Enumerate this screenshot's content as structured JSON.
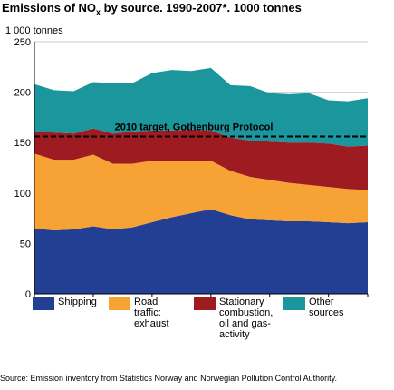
{
  "title_main": "Emissions of NO",
  "title_sub": "x",
  "title_rest": " by source. 1990-2007*. 1000 tonnes",
  "source": "Source: Emission inventory from Statistics Norway and Norwegian Pollution Control Authority.",
  "chart_data": {
    "type": "area",
    "stacked": true,
    "title": "Emissions of NOx by source. 1990-2007*. 1000 tonnes",
    "ylabel": "1 000 tonnes",
    "ylim": [
      0,
      250
    ],
    "yticks": [
      0,
      50,
      100,
      150,
      200,
      250
    ],
    "x": [
      1990,
      1991,
      1992,
      1993,
      1994,
      1995,
      1996,
      1997,
      1998,
      1999,
      2000,
      2001,
      2002,
      2003,
      2004,
      2005,
      2006,
      2007
    ],
    "xtick_labels": [
      "1990",
      "1993",
      "1996",
      "1999",
      "2002",
      "2005",
      "2007*"
    ],
    "xtick_values": [
      1990,
      1993,
      1996,
      1999,
      2002,
      2005,
      2007
    ],
    "grid": "horizontal",
    "legend_position": "bottom",
    "series": [
      {
        "name": "Shipping",
        "color": "#233f94",
        "values": [
          65,
          63,
          64,
          67,
          64,
          66,
          71,
          76,
          80,
          84,
          78,
          74,
          73,
          72,
          72,
          71,
          70,
          71
        ]
      },
      {
        "name": "Road traffic: exhaust",
        "color": "#f7a234",
        "values": [
          74,
          70,
          69,
          71,
          65,
          63,
          61,
          56,
          52,
          48,
          44,
          42,
          40,
          38,
          36,
          35,
          34,
          32
        ]
      },
      {
        "name": "Stationary combustion, oil and gas-activity",
        "color": "#9e1b21",
        "values": [
          22,
          27,
          26,
          26,
          30,
          32,
          30,
          30,
          31,
          30,
          33,
          36,
          38,
          40,
          42,
          43,
          42,
          44
        ]
      },
      {
        "name": "Other sources",
        "color": "#1b969c",
        "values": [
          47,
          42,
          42,
          46,
          50,
          48,
          57,
          60,
          58,
          62,
          52,
          54,
          48,
          48,
          49,
          43,
          45,
          47
        ]
      }
    ],
    "reference_line": {
      "label": "2010 target, Gothenburg Protocol",
      "value": 156
    }
  },
  "legend_labels": [
    "Shipping",
    "Road\ntraffic:\nexhaust",
    "Stationary\ncombustion,\noil and gas-\nactivity",
    "Other\nsources"
  ]
}
